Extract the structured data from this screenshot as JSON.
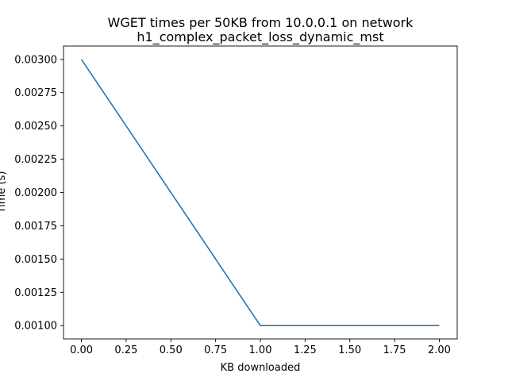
{
  "chart_data": {
    "type": "line",
    "title_lines": [
      "WGET times per 50KB from 10.0.0.1 on network",
      "h1_complex_packet_loss_dynamic_mst"
    ],
    "xlabel": "KB downloaded",
    "ylabel": "Time (s)",
    "xlim": [
      -0.1,
      2.1
    ],
    "ylim": [
      0.0009,
      0.0031
    ],
    "x_ticks": [
      0.0,
      0.25,
      0.5,
      0.75,
      1.0,
      1.25,
      1.5,
      1.75,
      2.0
    ],
    "x_tick_labels": [
      "0.00",
      "0.25",
      "0.50",
      "0.75",
      "1.00",
      "1.25",
      "1.50",
      "1.75",
      "2.00"
    ],
    "y_ticks": [
      0.001,
      0.00125,
      0.0015,
      0.00175,
      0.002,
      0.00225,
      0.0025,
      0.00275,
      0.003
    ],
    "y_tick_labels": [
      "0.00100",
      "0.00125",
      "0.00150",
      "0.00175",
      "0.00200",
      "0.00225",
      "0.00250",
      "0.00275",
      "0.00300"
    ],
    "grid": false,
    "legend": "none",
    "series": [
      {
        "color": "#1f77b4",
        "x": [
          0,
          1,
          2
        ],
        "y": [
          0.003,
          0.001,
          0.001
        ]
      }
    ]
  }
}
